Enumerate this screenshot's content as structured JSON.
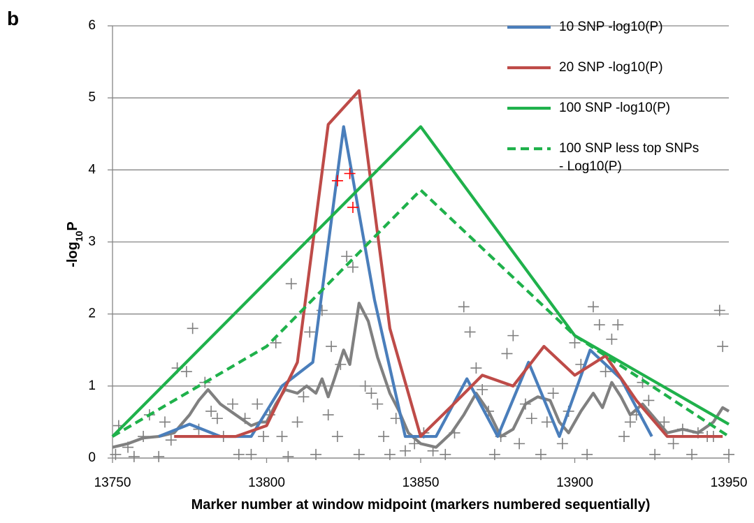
{
  "chart_data": {
    "type": "line",
    "panel_label": "b",
    "xlabel": "Marker number at window midpoint (markers numbered sequentially)",
    "ylabel_parts": [
      "-log",
      "10",
      "P"
    ],
    "xlim": [
      13750,
      13950
    ],
    "xticks": [
      13750,
      13800,
      13850,
      13900,
      13950
    ],
    "ylim": [
      0,
      6
    ],
    "yticks": [
      0,
      1,
      2,
      3,
      4,
      5,
      6
    ],
    "grid": true,
    "legend": "upper right",
    "series": [
      {
        "type": "scatter",
        "color": "#7f7f7f",
        "x": [
          13751,
          13752,
          13755,
          13757,
          13760,
          13762,
          13765,
          13767,
          13769,
          13771,
          13774,
          13776,
          13778,
          13780,
          13782,
          13784,
          13786,
          13789,
          13791,
          13793,
          13795,
          13797,
          13799,
          13801,
          13803,
          13805,
          13807,
          13808,
          13810,
          13812,
          13814,
          13816,
          13818,
          13820,
          13821,
          13823,
          13824,
          13826,
          13828,
          13830,
          13832,
          13834,
          13836,
          13838,
          13840,
          13842,
          13845,
          13848,
          13851,
          13854,
          13858,
          13861,
          13864,
          13866,
          13868,
          13870,
          13872,
          13874,
          13876,
          13878,
          13880,
          13882,
          13884,
          13886,
          13889,
          13891,
          13893,
          13896,
          13898,
          13900,
          13902,
          13904,
          13906,
          13908,
          13910,
          13912,
          13914,
          13916,
          13918,
          13920,
          13922,
          13924,
          13926,
          13929,
          13932,
          13935,
          13938,
          13940,
          13943,
          13945,
          13947,
          13948,
          13950
        ],
        "values": [
          0.05,
          0.45,
          0.15,
          0.02,
          0.3,
          0.6,
          0.02,
          0.5,
          0.25,
          1.25,
          1.2,
          1.8,
          0.4,
          1.05,
          0.65,
          0.55,
          0.3,
          0.75,
          0.05,
          0.55,
          0.05,
          0.75,
          0.3,
          0.6,
          1.6,
          0.3,
          0.02,
          2.42,
          0.5,
          0.85,
          1.75,
          0.05,
          2.05,
          0.6,
          1.55,
          0.3,
          1.3,
          2.8,
          2.65,
          0.05,
          1.0,
          0.9,
          0.75,
          0.3,
          0.05,
          0.55,
          0.1,
          0.2,
          0.35,
          0.1,
          0.05,
          0.35,
          2.1,
          1.75,
          1.25,
          0.95,
          0.65,
          0.05,
          0.3,
          1.45,
          1.7,
          0.2,
          0.75,
          0.55,
          0.05,
          0.5,
          0.9,
          0.2,
          0.65,
          1.6,
          1.3,
          0.05,
          2.1,
          1.85,
          1.2,
          1.65,
          1.85,
          0.3,
          0.5,
          0.6,
          1.05,
          0.8,
          0.05,
          0.5,
          0.2,
          0.4,
          0.05,
          0.35,
          0.3,
          0.3,
          2.05,
          1.55,
          0.05
        ]
      },
      {
        "type": "line",
        "color": "#808080",
        "x": [
          13750,
          13755,
          13760,
          13765,
          13770,
          13775,
          13778,
          13781,
          13785,
          13790,
          13795,
          13798,
          13800,
          13803,
          13806,
          13810,
          13813,
          13816,
          13818,
          13820,
          13822,
          13825,
          13827,
          13830,
          13833,
          13836,
          13840,
          13843,
          13846,
          13850,
          13855,
          13860,
          13864,
          13868,
          13872,
          13876,
          13880,
          13884,
          13888,
          13892,
          13895,
          13898,
          13902,
          13906,
          13909,
          13912,
          13915,
          13918,
          13922,
          13926,
          13930,
          13935,
          13940,
          13945,
          13948,
          13950
        ],
        "values": [
          0.15,
          0.2,
          0.28,
          0.3,
          0.35,
          0.6,
          0.8,
          0.95,
          0.75,
          0.6,
          0.45,
          0.5,
          0.5,
          0.75,
          0.95,
          0.9,
          1.0,
          0.9,
          1.1,
          0.85,
          1.1,
          1.5,
          1.3,
          2.15,
          1.9,
          1.4,
          0.9,
          0.65,
          0.35,
          0.2,
          0.15,
          0.35,
          0.6,
          0.9,
          0.65,
          0.3,
          0.4,
          0.75,
          0.85,
          0.8,
          0.5,
          0.35,
          0.65,
          0.9,
          0.7,
          1.05,
          0.85,
          0.6,
          0.75,
          0.55,
          0.35,
          0.4,
          0.35,
          0.5,
          0.7,
          0.65
        ]
      },
      {
        "type": "line",
        "name": "10 SNP -log10(P)",
        "color": "#4a7ebb",
        "x": [
          13765,
          13775,
          13785,
          13795,
          13805,
          13815,
          13825,
          13835,
          13845,
          13855,
          13865,
          13875,
          13885,
          13895,
          13905,
          13915,
          13925
        ],
        "values": [
          0.3,
          0.47,
          0.3,
          0.3,
          1.0,
          1.33,
          4.6,
          2.2,
          0.3,
          0.3,
          1.1,
          0.3,
          1.33,
          0.3,
          1.5,
          1.1,
          0.3
        ]
      },
      {
        "type": "line",
        "name": "20 SNP -log10(P)",
        "color": "#be4b48",
        "x": [
          13770,
          13780,
          13790,
          13800,
          13810,
          13820,
          13830,
          13840,
          13850,
          13860,
          13870,
          13880,
          13890,
          13900,
          13910,
          13920,
          13930,
          13940,
          13948
        ],
        "values": [
          0.3,
          0.3,
          0.3,
          0.45,
          1.33,
          4.63,
          5.1,
          1.8,
          0.3,
          0.72,
          1.15,
          1.0,
          1.55,
          1.15,
          1.42,
          0.8,
          0.3,
          0.3,
          0.3
        ]
      },
      {
        "type": "line",
        "name": "100 SNP -log10(P)",
        "color": "#1fb14b",
        "x": [
          13750,
          13850,
          13900,
          13950
        ],
        "values": [
          0.3,
          4.6,
          1.7,
          0.47
        ]
      },
      {
        "type": "line",
        "name": "100 SNP less top SNPs - Log10(P)",
        "color": "#1fb14b",
        "dashed": true,
        "x": [
          13750,
          13800,
          13850,
          13900,
          13950
        ],
        "values": [
          0.3,
          1.55,
          3.72,
          1.7,
          0.3
        ]
      },
      {
        "type": "scatter",
        "color": "#ff0000",
        "x": [
          13823,
          13827,
          13828
        ],
        "values": [
          3.85,
          3.95,
          3.48
        ]
      }
    ]
  }
}
